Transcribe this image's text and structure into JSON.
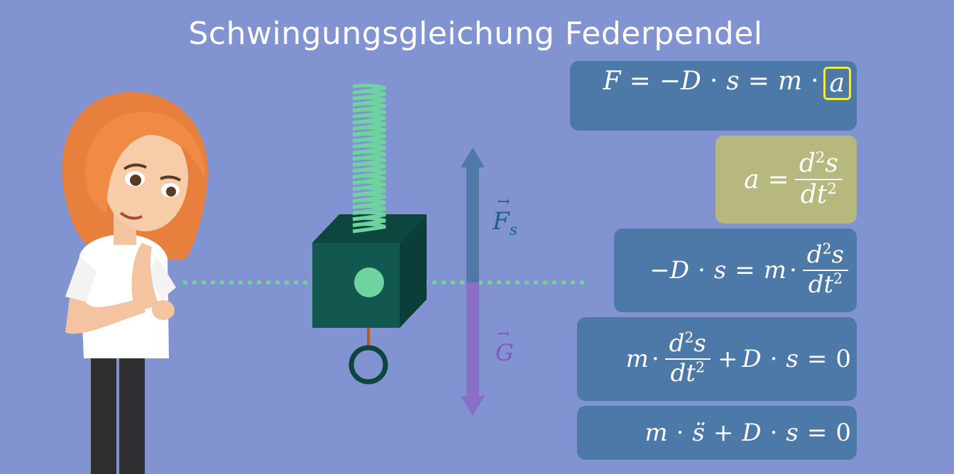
{
  "title": "Schwingungsgleichung Federpendel",
  "colors": {
    "background": "#8293d1",
    "equation_box": "#4d79a8",
    "highlight_box": "#b7b87e",
    "highlight_border": "#f1e94a",
    "spring": "#6fd3a0",
    "block": "#125850",
    "force_up": "#4f79a9",
    "force_down": "#8a6fc8"
  },
  "labels": {
    "spring_force": "F",
    "spring_force_sub": "s",
    "gravity": "G",
    "vector_arrow": "→"
  },
  "equations": {
    "eq1": {
      "lhs": "F",
      "eq": "=",
      "minus_d": "−D",
      "dot": "·",
      "s": "s",
      "eq2": "=",
      "m": "m",
      "dot2": "·",
      "a": "a"
    },
    "eq2": {
      "a": "a",
      "eq": "=",
      "num": "d",
      "num_exp": "2",
      "num_var": "s",
      "den": "dt",
      "den_exp": "2"
    },
    "eq3": {
      "minus_d": "−D",
      "dot": "·",
      "s": "s",
      "eq": "=",
      "m": "m",
      "dot2": "·",
      "num": "d",
      "num_exp": "2",
      "num_var": "s",
      "den": "dt",
      "den_exp": "2"
    },
    "eq4": {
      "m": "m",
      "dot": "·",
      "num": "d",
      "num_exp": "2",
      "num_var": "s",
      "den": "dt",
      "den_exp": "2",
      "plus": "+",
      "d": "D",
      "dot2": "·",
      "s": "s",
      "eq": "=",
      "zero": "0"
    },
    "eq5": {
      "m": "m",
      "dot": "·",
      "sdd": "s̈",
      "plus": "+",
      "d": "D",
      "dot2": "·",
      "s": "s",
      "eq": "=",
      "zero": "0"
    }
  }
}
